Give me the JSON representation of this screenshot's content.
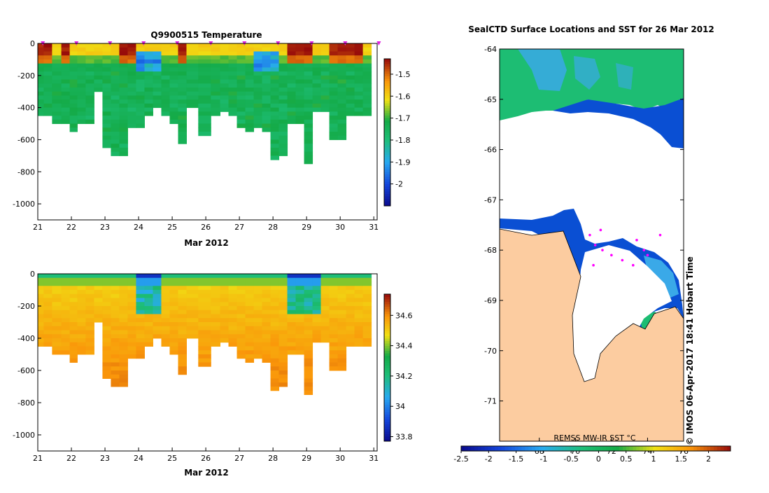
{
  "chart_data": [
    {
      "type": "heatmap",
      "title": "Q9900515  Temperature",
      "xlabel": "Mar 2012",
      "x_ticks": [
        "21",
        "22",
        "23",
        "24",
        "25",
        "26",
        "27",
        "28",
        "29",
        "30",
        "31"
      ],
      "xlim": [
        21,
        31.1
      ],
      "ylim": [
        -1100,
        0
      ],
      "y_ticks": [
        "0",
        "-200",
        "-400",
        "-600",
        "-800",
        "-1000"
      ],
      "y_tick_values": [
        0,
        -200,
        -400,
        -600,
        -800,
        -1000
      ],
      "colorbar": {
        "range": [
          -2.1,
          -1.43
        ],
        "ticks": [
          "-1.5",
          "-1.6",
          "-1.7",
          "-1.8",
          "-1.9",
          "-2"
        ],
        "tick_values": [
          -1.5,
          -1.6,
          -1.7,
          -1.8,
          -1.9,
          -2.0
        ]
      },
      "profile_times": [
        21.05,
        21.3,
        21.55,
        21.85,
        22.05,
        22.3,
        22.55,
        22.8,
        23.05,
        23.3,
        23.55,
        23.8,
        24.05,
        24.3,
        24.55,
        24.8,
        25.05,
        25.3,
        25.55,
        26.0,
        26.3,
        26.55,
        26.8,
        27.05,
        27.3,
        27.55,
        27.8,
        28.05,
        28.3,
        28.55,
        28.8,
        29.05,
        29.3,
        29.55,
        29.8,
        30.05,
        30.3,
        30.55,
        30.8
      ],
      "profile_max_depth": [
        450,
        450,
        490,
        490,
        550,
        490,
        490,
        290,
        650,
        700,
        700,
        520,
        520,
        430,
        380,
        430,
        500,
        610,
        390,
        570,
        450,
        420,
        450,
        510,
        550,
        520,
        540,
        710,
        690,
        500,
        500,
        750,
        420,
        420,
        590,
        580,
        450,
        450,
        450
      ],
      "surface_markers_x": [
        21.0,
        22.0,
        23.0,
        24.0,
        25.0,
        26.0,
        27.0,
        28.0,
        29.0,
        30.0,
        31.0
      ]
    },
    {
      "type": "heatmap",
      "title": "",
      "xlabel": "Mar 2012",
      "x_ticks": [
        "21",
        "22",
        "23",
        "24",
        "25",
        "26",
        "27",
        "28",
        "29",
        "30",
        "31"
      ],
      "xlim": [
        21,
        31.1
      ],
      "ylim": [
        -1100,
        0
      ],
      "y_ticks": [
        "0",
        "-200",
        "-400",
        "-600",
        "-800",
        "-1000"
      ],
      "y_tick_values": [
        0,
        -200,
        -400,
        -600,
        -800,
        -1000
      ],
      "colorbar": {
        "range": [
          33.77,
          34.74
        ],
        "ticks": [
          "34.6",
          "34.4",
          "34.2",
          "34",
          "33.8"
        ],
        "tick_values": [
          34.6,
          34.4,
          34.2,
          34.0,
          33.8
        ]
      }
    },
    {
      "type": "heatmap",
      "title": "SealCTD Surface Locations and SST for 26 Mar 2012",
      "lat_ticks": [
        "-64",
        "-65",
        "-66",
        "-67",
        "-68",
        "-69",
        "-70",
        "-71"
      ],
      "lat_tick_values": [
        -64,
        -65,
        -66,
        -67,
        -68,
        -69,
        -70,
        -71
      ],
      "lon_ticks": [
        "68",
        "70",
        "72",
        "74",
        "76"
      ],
      "lon_tick_values": [
        68,
        70,
        72,
        74,
        76
      ],
      "lat_range": [
        -71.8,
        -64
      ],
      "lon_range": [
        65.8,
        76.0
      ],
      "source_label": "REMSS MW-IR SST °C",
      "credit": "© IMOS 06-Apr-2017 18:41 Hobart Time",
      "colorbar": {
        "range": [
          -2.5,
          2.4
        ],
        "ticks": [
          "-2.5",
          "-2",
          "-1.5",
          "-1",
          "-0.5",
          "0",
          "0.5",
          "1",
          "1.5",
          "2"
        ],
        "tick_values": [
          -2.5,
          -2.0,
          -1.5,
          -1.0,
          -0.5,
          0,
          0.5,
          1.0,
          1.5,
          2.0
        ]
      },
      "surface_locations": [
        {
          "lon": 70.8,
          "lat": -67.7
        },
        {
          "lon": 71.4,
          "lat": -67.6
        },
        {
          "lon": 71.1,
          "lat": -67.9
        },
        {
          "lon": 71.5,
          "lat": -68.0
        },
        {
          "lon": 72.0,
          "lat": -68.1
        },
        {
          "lon": 72.6,
          "lat": -68.2
        },
        {
          "lon": 73.2,
          "lat": -68.3
        },
        {
          "lon": 73.8,
          "lat": -68.0
        },
        {
          "lon": 74.0,
          "lat": -68.1
        },
        {
          "lon": 73.4,
          "lat": -67.8
        },
        {
          "lon": 74.7,
          "lat": -67.7
        },
        {
          "lon": 71.0,
          "lat": -68.3
        }
      ]
    }
  ]
}
